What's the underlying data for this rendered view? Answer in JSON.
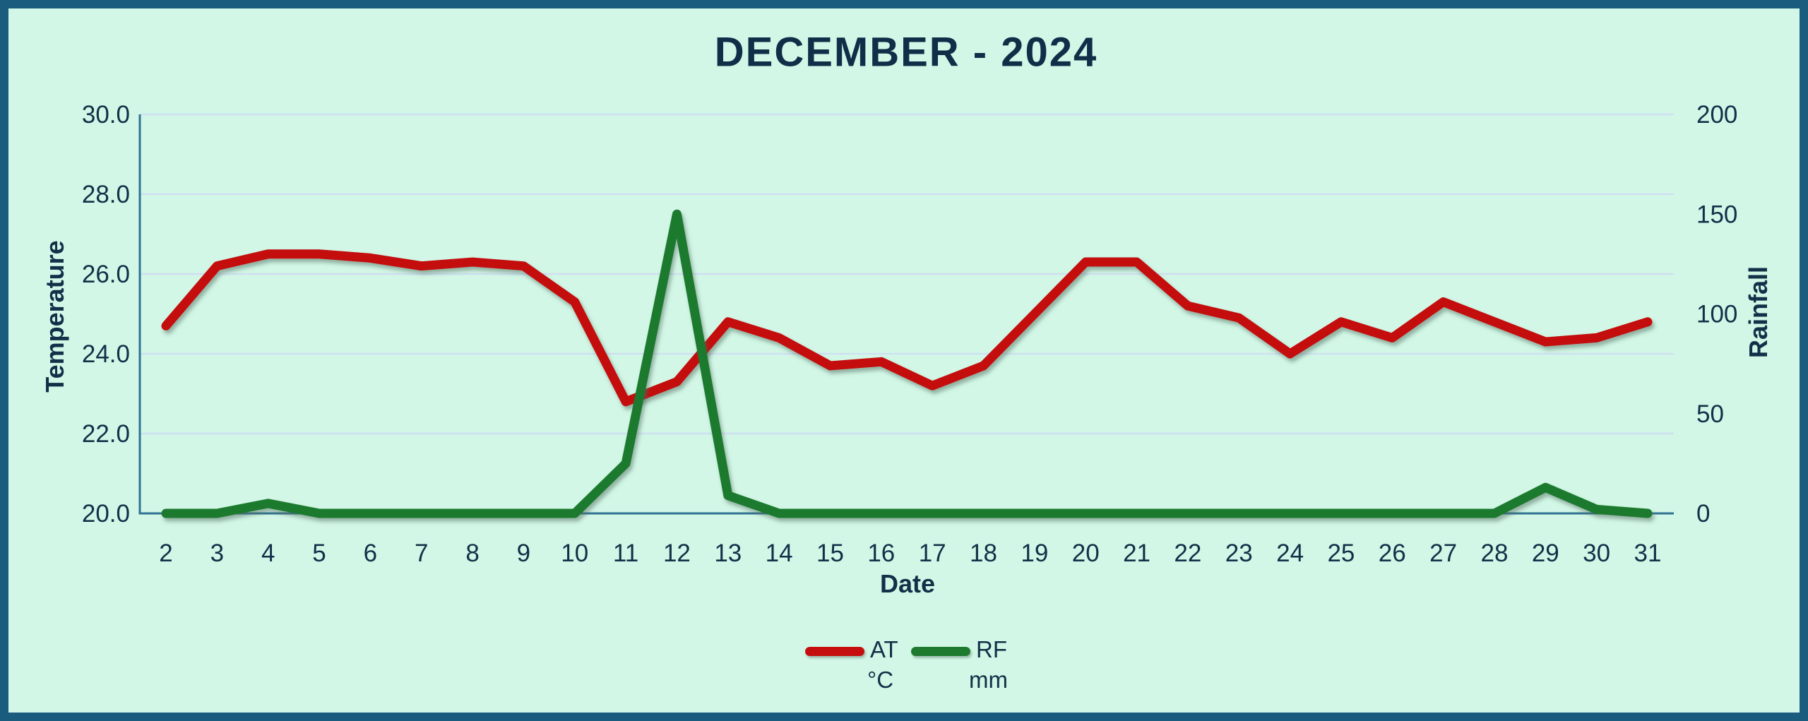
{
  "title": "DECEMBER - 2024",
  "colors": {
    "background": "#d2f7e6",
    "border": "#1a5c7e",
    "text": "#123048",
    "at_line": "#c40f0e",
    "rf_line": "#1e7a2e",
    "gridline": "#cfdff2",
    "axis_line": "#2f7292"
  },
  "legend": {
    "items": [
      {
        "label": "AT",
        "unit": "°C",
        "color": "#c40f0e"
      },
      {
        "label": "RF",
        "unit": "mm",
        "color": "#1e7a2e"
      }
    ]
  },
  "chart_data": {
    "type": "line",
    "title": "DECEMBER - 2024",
    "xlabel": "Date",
    "grid": "horizontal",
    "legend_position": "bottom-center",
    "categories": [
      "2",
      "3",
      "4",
      "5",
      "6",
      "7",
      "8",
      "9",
      "10",
      "11",
      "12",
      "13",
      "14",
      "15",
      "16",
      "17",
      "18",
      "19",
      "20",
      "21",
      "22",
      "23",
      "24",
      "25",
      "26",
      "27",
      "28",
      "29",
      "30",
      "31"
    ],
    "left_axis": {
      "label": "Temperature",
      "min": 20,
      "max": 30,
      "ticks": [
        "30.0",
        "28.0",
        "26.0",
        "24.0",
        "22.0",
        "20.0"
      ]
    },
    "right_axis": {
      "label": "Rainfall",
      "min": 0,
      "max": 200,
      "ticks": [
        "200",
        "150",
        "100",
        "50",
        "0"
      ]
    },
    "series": [
      {
        "name": "AT",
        "unit": "°C",
        "axis": "left",
        "color": "#c40f0e",
        "values": [
          24.7,
          26.2,
          26.5,
          26.5,
          26.4,
          26.2,
          26.3,
          26.2,
          25.3,
          22.8,
          23.3,
          24.8,
          24.4,
          23.7,
          23.8,
          23.2,
          23.7,
          25.0,
          26.3,
          26.3,
          25.2,
          24.9,
          24.0,
          24.8,
          24.4,
          25.3,
          24.8,
          24.3,
          24.4,
          24.8
        ]
      },
      {
        "name": "RF",
        "unit": "mm",
        "axis": "right",
        "color": "#1e7a2e",
        "values": [
          0,
          0,
          5,
          0,
          0,
          0,
          0,
          0,
          0,
          25,
          150,
          9,
          0,
          0,
          0,
          0,
          0,
          0,
          0,
          0,
          0,
          0,
          0,
          0,
          0,
          0,
          0,
          13,
          2,
          0
        ]
      }
    ]
  }
}
